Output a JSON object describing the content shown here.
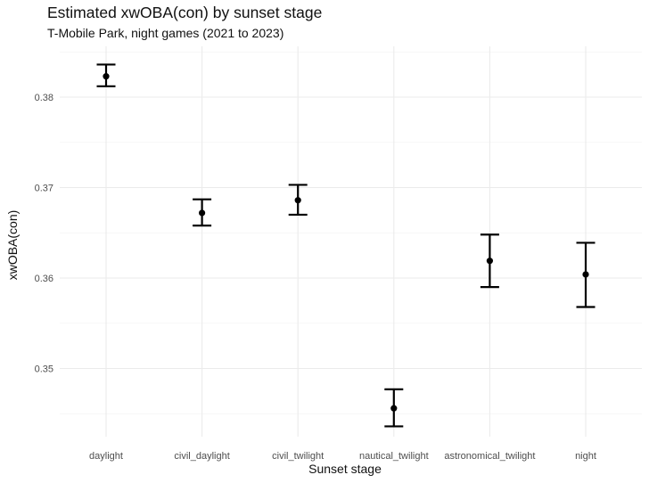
{
  "chart_data": {
    "type": "errorbar",
    "title": "Estimated xwOBA(con) by sunset stage",
    "subtitle": "T-Mobile Park, night games (2021 to 2023)",
    "xlabel": "Sunset stage",
    "ylabel": "xwOBA(con)",
    "categories": [
      "daylight",
      "civil_daylight",
      "civil_twilight",
      "nautical_twilight",
      "astronomical_twilight",
      "night"
    ],
    "estimates": [
      0.3823,
      0.3672,
      0.3686,
      0.3456,
      0.3619,
      0.3604
    ],
    "lower": [
      0.3812,
      0.3658,
      0.367,
      0.3436,
      0.359,
      0.3568
    ],
    "upper": [
      0.3836,
      0.3687,
      0.3703,
      0.3477,
      0.3648,
      0.3639
    ],
    "y_ticks": [
      0.35,
      0.36,
      0.37,
      0.38
    ],
    "y_tick_labels": [
      "0.35",
      "0.36",
      "0.37",
      "0.38"
    ],
    "ylim": [
      0.3425,
      0.3855
    ],
    "grid": true,
    "theme": "minimal",
    "colors": {
      "point": "#000000",
      "grid_major": "#ebebeb",
      "grid_minor": "#f3f3f3",
      "text": "#111111",
      "tick_text": "#4d4d4d"
    }
  }
}
